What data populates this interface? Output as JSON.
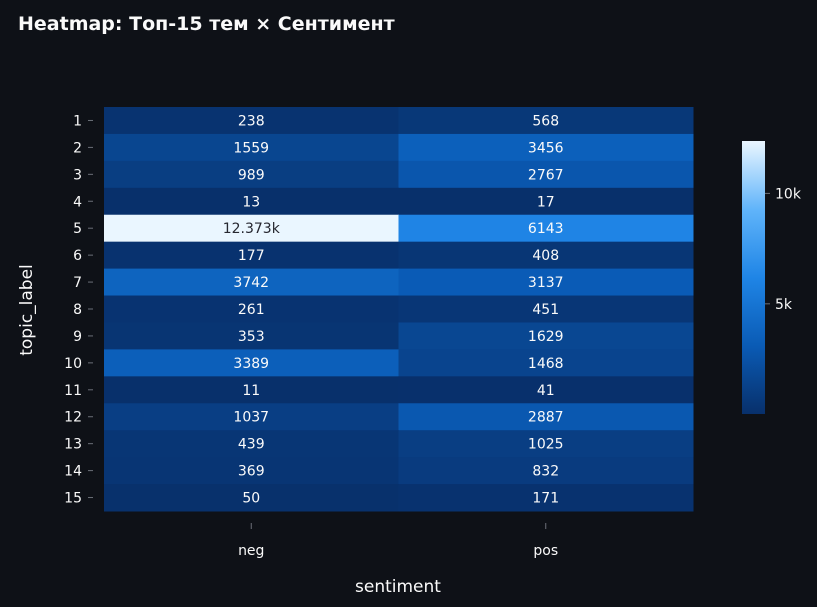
{
  "chart_data": {
    "type": "heatmap",
    "title": "Heatmap: Топ-15 тем × Сентимент",
    "xlabel": "sentiment",
    "ylabel": "topic_label",
    "x_categories": [
      "neg",
      "pos"
    ],
    "y_categories": [
      "1",
      "2",
      "3",
      "4",
      "5",
      "6",
      "7",
      "8",
      "9",
      "10",
      "11",
      "12",
      "13",
      "14",
      "15"
    ],
    "values": [
      [
        238,
        568
      ],
      [
        1559,
        3456
      ],
      [
        989,
        2767
      ],
      [
        13,
        17
      ],
      [
        12373,
        6143
      ],
      [
        177,
        408
      ],
      [
        3742,
        3137
      ],
      [
        261,
        451
      ],
      [
        353,
        1629
      ],
      [
        3389,
        1468
      ],
      [
        11,
        41
      ],
      [
        1037,
        2887
      ],
      [
        439,
        1025
      ],
      [
        369,
        832
      ],
      [
        50,
        171
      ]
    ],
    "cell_labels": [
      [
        "238",
        "568"
      ],
      [
        "1559",
        "3456"
      ],
      [
        "989",
        "2767"
      ],
      [
        "13",
        "17"
      ],
      [
        "12.373k",
        "6143"
      ],
      [
        "177",
        "408"
      ],
      [
        "3742",
        "3137"
      ],
      [
        "261",
        "451"
      ],
      [
        "353",
        "1629"
      ],
      [
        "3389",
        "1468"
      ],
      [
        "11",
        "41"
      ],
      [
        "1037",
        "2887"
      ],
      [
        "439",
        "1025"
      ],
      [
        "369",
        "832"
      ],
      [
        "50",
        "171"
      ]
    ],
    "zlim": [
      11,
      12373
    ],
    "colorscale": [
      "#08306b",
      "#0a5bb5",
      "#1f85e6",
      "#60b4fa",
      "#eaf6ff"
    ],
    "colorbar": {
      "ticks": [
        {
          "value": 5000,
          "label": "5k"
        },
        {
          "value": 10000,
          "label": "10k"
        }
      ]
    },
    "grid": false,
    "legend": "colorbar-right"
  },
  "theme": {
    "background": "#0e1117",
    "text": "#fafafa",
    "dark_label": "#262730"
  }
}
